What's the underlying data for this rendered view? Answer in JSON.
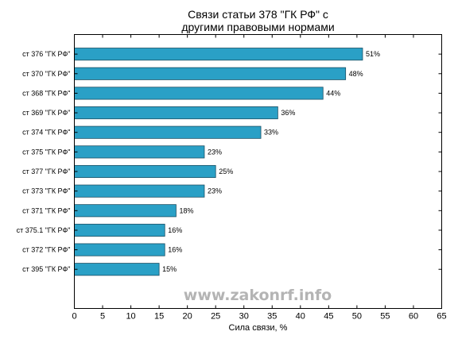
{
  "chart_data": {
    "type": "bar",
    "orientation": "horizontal",
    "title_line1": "Связи статьи 378 \"ГК РФ\" с",
    "title_line2": "другими правовыми нормами",
    "xlabel": "Сила связи, %",
    "ylabel": "",
    "xlim": [
      0,
      65
    ],
    "xticks": [
      0,
      5,
      10,
      15,
      20,
      25,
      30,
      35,
      40,
      45,
      50,
      55,
      60,
      65
    ],
    "grid": false,
    "categories": [
      "ст 376 \"ГК РФ\"",
      "ст 370 \"ГК РФ\"",
      "ст 368 \"ГК РФ\"",
      "ст 369 \"ГК РФ\"",
      "ст 374 \"ГК РФ\"",
      "ст 375 \"ГК РФ\"",
      "ст 377 \"ГК РФ\"",
      "ст 373 \"ГК РФ\"",
      "ст 371 \"ГК РФ\"",
      "ст 375.1 \"ГК РФ\"",
      "ст 372 \"ГК РФ\"",
      "ст 395 \"ГК РФ\""
    ],
    "values": [
      51,
      48,
      44,
      36,
      33,
      23,
      25,
      23,
      18,
      16,
      16,
      15
    ],
    "value_labels": [
      "51%",
      "48%",
      "44%",
      "36%",
      "33%",
      "23%",
      "25%",
      "23%",
      "18%",
      "16%",
      "16%",
      "15%"
    ],
    "bar_color": "#2aa0c6",
    "edge_color": "#1a4f63"
  },
  "watermark": "www.zakonrf.info"
}
